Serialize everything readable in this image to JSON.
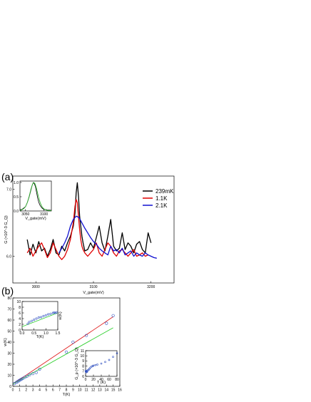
{
  "panels": {
    "a": {
      "label": "(a)"
    },
    "b": {
      "label": "(b)"
    }
  },
  "chart_data": [
    {
      "panel": "(a)",
      "type": "line",
      "xlabel": "V_gate(mV)",
      "ylabel": "G (×10^-3 G_Q)",
      "xlim": [
        2960,
        3240
      ],
      "ylim": [
        5.6,
        7.2
      ],
      "xticks": [
        3000,
        3100,
        3200
      ],
      "yticks": [
        6.0,
        7.0
      ],
      "legend_position": "upper-right",
      "colors": {
        "239mK": "#000000",
        "1.1K": "#e00000",
        "2.1K": "#1010d0"
      },
      "series": [
        {
          "name": "239mK",
          "x": [
            2985,
            2990,
            2995,
            3000,
            3005,
            3010,
            3015,
            3020,
            3025,
            3030,
            3035,
            3040,
            3045,
            3050,
            3055,
            3060,
            3065,
            3068,
            3070,
            3072,
            3074,
            3076,
            3078,
            3080,
            3082,
            3085,
            3090,
            3095,
            3100,
            3105,
            3110,
            3115,
            3120,
            3125,
            3130,
            3135,
            3140,
            3145,
            3150,
            3155,
            3160,
            3165,
            3170,
            3175,
            3180,
            3185,
            3190,
            3195,
            3200
          ],
          "y": [
            6.25,
            6.02,
            6.18,
            6.05,
            6.22,
            6.08,
            6.12,
            6.0,
            6.1,
            6.25,
            6.05,
            6.02,
            6.15,
            6.08,
            6.2,
            6.3,
            6.45,
            6.65,
            6.95,
            7.1,
            6.9,
            6.6,
            6.45,
            6.3,
            6.2,
            6.08,
            6.1,
            6.2,
            6.12,
            6.28,
            6.45,
            6.2,
            6.08,
            6.3,
            6.55,
            6.15,
            6.08,
            6.12,
            6.35,
            6.1,
            6.2,
            6.15,
            6.05,
            6.18,
            6.22,
            6.1,
            6.05,
            6.35,
            6.2
          ]
        },
        {
          "name": "1.1K",
          "x": [
            2985,
            2990,
            2995,
            3000,
            3005,
            3010,
            3015,
            3020,
            3025,
            3030,
            3035,
            3040,
            3045,
            3050,
            3055,
            3060,
            3065,
            3068,
            3070,
            3072,
            3074,
            3076,
            3078,
            3080,
            3082,
            3085,
            3090,
            3095,
            3100,
            3105,
            3110,
            3115,
            3120,
            3125,
            3130,
            3135,
            3140,
            3145,
            3150,
            3155,
            3160,
            3165,
            3170,
            3175,
            3180,
            3185,
            3190,
            3195
          ],
          "y": [
            6.05,
            6.12,
            6.0,
            6.08,
            6.15,
            6.2,
            6.1,
            5.98,
            6.05,
            6.2,
            6.1,
            6.0,
            5.95,
            6.0,
            6.1,
            6.25,
            6.5,
            6.75,
            6.85,
            6.8,
            6.6,
            6.4,
            6.25,
            6.15,
            6.1,
            6.05,
            6.0,
            6.05,
            6.1,
            6.2,
            6.05,
            6.0,
            6.1,
            6.2,
            6.15,
            6.05,
            6.0,
            6.08,
            6.1,
            6.05,
            6.0,
            6.05,
            6.1,
            6.0,
            6.02,
            6.05,
            6.0,
            6.02
          ]
        },
        {
          "name": "2.1K",
          "x": [
            3040,
            3045,
            3050,
            3055,
            3060,
            3065,
            3070,
            3075,
            3080,
            3085,
            3090,
            3095,
            3100,
            3105,
            3110,
            3115,
            3120,
            3125,
            3130,
            3135,
            3140,
            3145,
            3150,
            3155,
            3160,
            3165,
            3170,
            3175,
            3180,
            3185,
            3190,
            3195,
            3200,
            3205,
            3210
          ],
          "y": [
            6.05,
            6.12,
            6.2,
            6.3,
            6.45,
            6.55,
            6.6,
            6.58,
            6.5,
            6.42,
            6.35,
            6.28,
            6.22,
            6.18,
            6.12,
            6.08,
            6.05,
            6.02,
            6.15,
            6.08,
            6.1,
            6.05,
            6.12,
            6.02,
            6.05,
            6.08,
            6.0,
            6.05,
            6.02,
            6.0,
            6.05,
            6.02,
            6.0,
            5.98,
            5.97
          ]
        }
      ],
      "inset": {
        "type": "line",
        "xlabel": "V_gate(mV)",
        "xlim": [
          3035,
          3120
        ],
        "ylim": [
          0.0,
          1.05
        ],
        "xticks": [
          3050,
          3100
        ],
        "yticks": [
          0.0,
          0.5,
          1.0
        ],
        "series": [
          {
            "name": "data",
            "x": [
              3035,
              3040,
              3045,
              3050,
              3055,
              3060,
              3065,
              3068,
              3071,
              3074,
              3077,
              3080,
              3083,
              3086,
              3090,
              3095,
              3100,
              3105,
              3110,
              3115,
              3120
            ],
            "y": [
              0.05,
              0.05,
              0.1,
              0.15,
              0.3,
              0.5,
              0.75,
              0.9,
              1.0,
              0.95,
              0.85,
              0.65,
              0.45,
              0.3,
              0.18,
              0.1,
              0.05,
              0.05,
              0.03,
              0.03,
              0.02
            ]
          },
          {
            "name": "fit",
            "x": [
              3035,
              3040,
              3045,
              3050,
              3055,
              3060,
              3065,
              3070,
              3073,
              3076,
              3080,
              3085,
              3090,
              3095,
              3100,
              3105,
              3110,
              3115,
              3120
            ],
            "y": [
              0.02,
              0.04,
              0.08,
              0.15,
              0.3,
              0.52,
              0.78,
              0.97,
              1.0,
              0.95,
              0.78,
              0.5,
              0.28,
              0.14,
              0.07,
              0.04,
              0.02,
              0.01,
              0.01
            ]
          }
        ],
        "colors": {
          "data": "#000000",
          "fit": "#30b030"
        }
      }
    },
    {
      "panel": "(b)",
      "type": "scatter",
      "xlabel": "T(K)",
      "ylabel": "w(K)",
      "xlim": [
        0,
        16
      ],
      "ylim": [
        0,
        80
      ],
      "xticks": [
        0,
        1,
        2,
        3,
        4,
        5,
        6,
        7,
        8,
        9,
        10,
        11,
        12,
        13,
        14,
        15,
        16
      ],
      "yticks": [
        0,
        10,
        20,
        30,
        40,
        50,
        60,
        70,
        80
      ],
      "points": {
        "x": [
          0.24,
          0.5,
          0.7,
          0.9,
          1.1,
          1.3,
          1.5,
          1.8,
          2.1,
          2.5,
          3.0,
          3.5,
          4.0,
          8.0,
          9.0,
          11.0,
          14.0,
          15.0
        ],
        "y": [
          2.5,
          3.5,
          4.2,
          5.0,
          5.8,
          6.5,
          7.2,
          8.2,
          9.0,
          10.5,
          11.5,
          12.5,
          15.5,
          31,
          40,
          46,
          57,
          64
        ]
      },
      "lines": [
        {
          "name": "red",
          "x": [
            0,
            15
          ],
          "y": [
            2.0,
            63
          ]
        },
        {
          "name": "green",
          "x": [
            0,
            15
          ],
          "y": [
            2.0,
            53
          ]
        }
      ],
      "colors": {
        "points": "#3050c0",
        "red": "#e02020",
        "green": "#30d030"
      },
      "inset_left": {
        "type": "scatter",
        "xlabel": "T(K)",
        "ylabel": "w(K)",
        "xlim": [
          0,
          1.5
        ],
        "ylim": [
          0,
          10
        ],
        "xticks": [
          0.0,
          0.5,
          1.0,
          1.5
        ],
        "yticks": [
          0,
          2,
          4,
          6,
          8,
          10
        ],
        "points": {
          "x": [
            0.24,
            0.3,
            0.4,
            0.5,
            0.6,
            0.7,
            0.8,
            0.9,
            1.0,
            1.1,
            1.2,
            1.3,
            1.35,
            1.4,
            1.45
          ],
          "y": [
            2.2,
            2.8,
            3.2,
            3.6,
            4.0,
            4.4,
            4.5,
            4.9,
            5.2,
            5.5,
            5.7,
            6.0,
            6.1,
            6.0,
            6.2
          ]
        },
        "line": {
          "x": [
            0,
            1.5
          ],
          "y": [
            1.2,
            6.0
          ]
        }
      },
      "inset_right": {
        "type": "scatter",
        "xlabel": "T (K)",
        "ylabel": "G_p (×10^-3 G_Q)",
        "xlim": [
          0,
          80
        ],
        "ylim": [
          6,
          11
        ],
        "xticks": [
          0,
          20,
          40,
          60,
          80
        ],
        "yticks": [
          6,
          7,
          8,
          9,
          10,
          11
        ],
        "points": {
          "x": [
            0.3,
            1,
            1.5,
            2,
            3,
            4,
            6,
            8,
            10,
            12,
            15,
            18,
            20,
            25,
            30,
            40,
            50,
            60,
            70,
            80
          ],
          "y": [
            7.0,
            6.9,
            7.1,
            6.8,
            7.0,
            6.9,
            7.2,
            7.3,
            7.5,
            7.7,
            7.9,
            8.0,
            8.1,
            8.2,
            8.3,
            8.5,
            8.8,
            9.2,
            9.8,
            10.5
          ]
        }
      }
    }
  ]
}
